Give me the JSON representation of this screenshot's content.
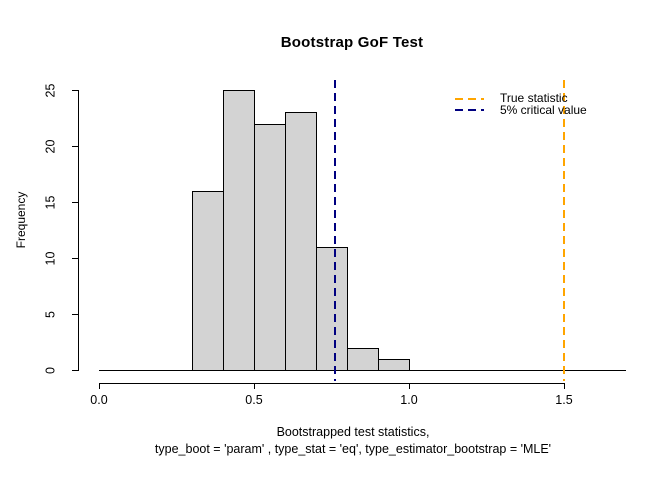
{
  "chart_data": {
    "type": "bar",
    "subtype": "histogram",
    "title": "Bootstrap GoF Test",
    "ylabel": "Frequency",
    "xlabel_line1": "Bootstrapped test statistics,",
    "xlabel_line2": "type_boot = 'param' , type_stat = 'eq', type_estimator_bootstrap = 'MLE'",
    "bin_edges": [
      0.3,
      0.4,
      0.5,
      0.6,
      0.7,
      0.8,
      0.9,
      1.0
    ],
    "counts": [
      16,
      25,
      22,
      23,
      11,
      2,
      1
    ],
    "xlim": [
      0,
      1.7
    ],
    "ylim": [
      0,
      25
    ],
    "x_ticks": [
      0.0,
      0.5,
      1.0,
      1.5
    ],
    "x_tick_labels": [
      "0.0",
      "0.5",
      "1.0",
      "1.5"
    ],
    "y_ticks": [
      0,
      5,
      10,
      15,
      20,
      25
    ],
    "y_tick_labels": [
      "0",
      "5",
      "10",
      "15",
      "20",
      "25"
    ],
    "bar_fill": "#d3d3d3",
    "bar_border": "#000000",
    "grid": false,
    "vlines": [
      {
        "x": 1.5,
        "color": "#ffa500",
        "style": "dashed",
        "name": "true-statistic-line"
      },
      {
        "x": 0.76,
        "color": "#000080",
        "style": "dashed",
        "name": "critical-value-line"
      }
    ],
    "legend": {
      "position": "topright",
      "box": false,
      "items": [
        {
          "label": "True statistic",
          "color": "#ffa500",
          "style": "dashed"
        },
        {
          "label": "5% critical value",
          "color": "#000080",
          "style": "dashed"
        }
      ]
    }
  }
}
